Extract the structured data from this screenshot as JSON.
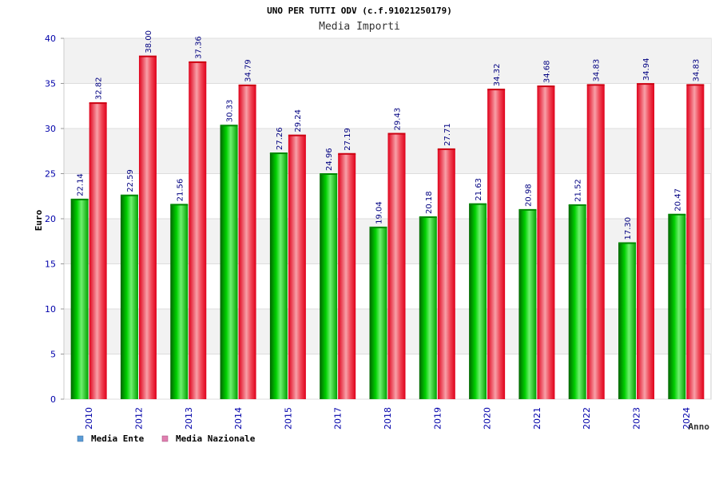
{
  "chart_data": {
    "type": "bar",
    "title": "UNO PER TUTTI ODV (c.f.91021250179)",
    "subtitle": "Media Importi",
    "xlabel": "Anno",
    "ylabel": "Euro",
    "ylim": [
      0,
      40
    ],
    "yticks": [
      0,
      5,
      10,
      15,
      20,
      25,
      30,
      35,
      40
    ],
    "categories": [
      "2010",
      "2012",
      "2013",
      "2014",
      "2015",
      "2017",
      "2018",
      "2019",
      "2020",
      "2021",
      "2022",
      "2023",
      "2024"
    ],
    "series": [
      {
        "name": "Media Ente",
        "color": "#00bb00",
        "values": [
          22.14,
          22.59,
          21.56,
          30.33,
          27.26,
          24.96,
          19.04,
          20.18,
          21.63,
          20.98,
          21.52,
          17.3,
          20.47
        ],
        "labels": [
          "22.14",
          "22.59",
          "21.56",
          "30.33",
          "27.26",
          "24.96",
          "19.04",
          "20.18",
          "21.63",
          "20.98",
          "21.52",
          "17.30",
          "20.47"
        ]
      },
      {
        "name": "Media Nazionale",
        "color": "#ee1c2a",
        "values": [
          32.82,
          38.0,
          37.36,
          34.79,
          29.24,
          27.19,
          29.43,
          27.71,
          34.32,
          34.68,
          34.83,
          34.94,
          34.83
        ],
        "labels": [
          "32.82",
          "38.00",
          "37.36",
          "34.79",
          "29.24",
          "27.19",
          "29.43",
          "27.71",
          "34.32",
          "34.68",
          "34.83",
          "34.94",
          "34.83"
        ]
      }
    ],
    "legend": [
      {
        "label": "Media Ente",
        "color": "#5b9bd5"
      },
      {
        "label": "Media Nazionale",
        "color": "#e07fb0"
      }
    ],
    "legend_placement": "bottom-left",
    "grid": true
  }
}
